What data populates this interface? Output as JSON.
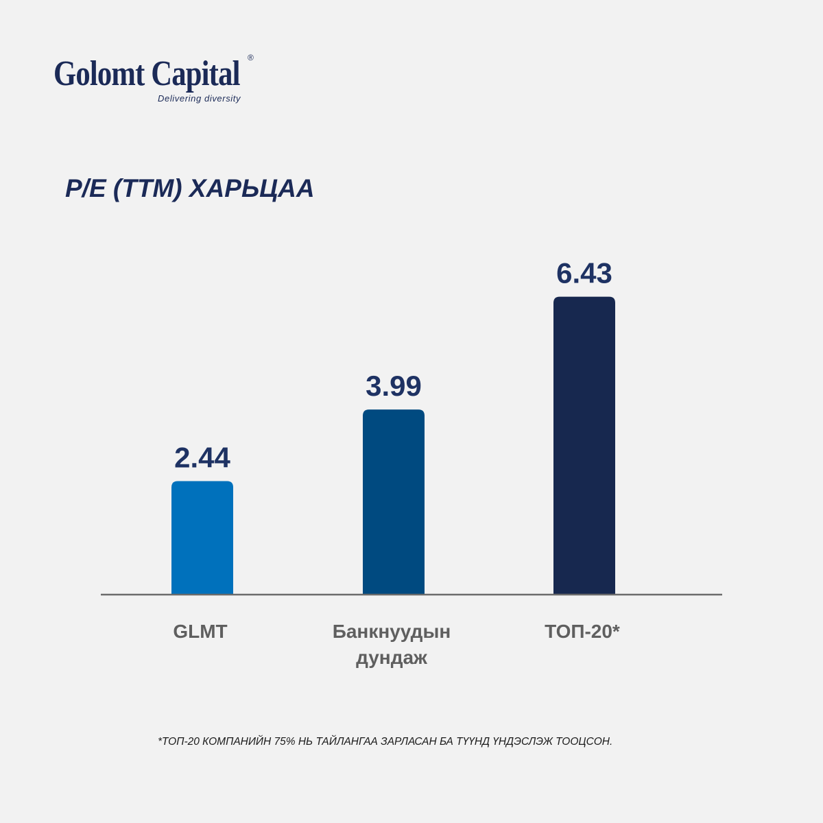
{
  "logo": {
    "name": "Golomt Capital",
    "registered_mark": "®",
    "tagline": "Delivering diversity"
  },
  "footnote": "*ТОП-20 КОМПАНИЙН 75% НЬ ТАЙЛАНГАА ЗАРЛАСАН БА ТҮҮНД ҮНДЭСЛЭЖ ТООЦСОН.",
  "chart_data": {
    "type": "bar",
    "title": "P/E (TTM) ХАРЬЦАА",
    "xlabel": "",
    "ylabel": "",
    "categories": [
      [
        "GLMT"
      ],
      [
        "Банкнуудын",
        "дундаж"
      ],
      [
        "ТОП-20*"
      ]
    ],
    "values": [
      2.44,
      3.99,
      6.43
    ],
    "value_labels": [
      "2.44",
      "3.99",
      "6.43"
    ],
    "colors": [
      "#0071bc",
      "#004a80",
      "#17284f"
    ],
    "ylim": [
      0,
      7
    ],
    "grid": false,
    "legend": "none"
  }
}
